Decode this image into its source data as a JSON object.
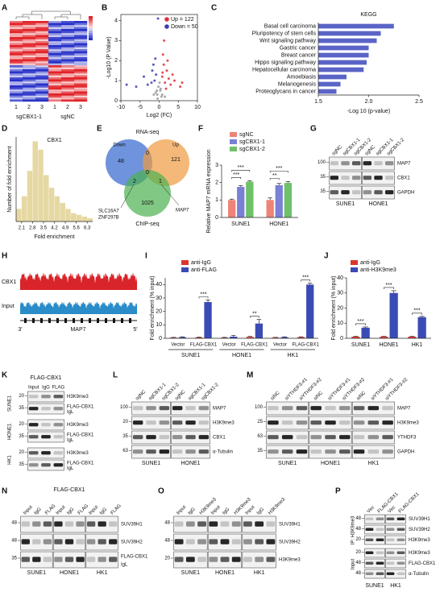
{
  "panel_labels": [
    "A",
    "B",
    "C",
    "D",
    "E",
    "F",
    "G",
    "H",
    "I",
    "J",
    "K",
    "L",
    "M",
    "N",
    "O",
    "P"
  ],
  "heatmap": {
    "lanes": [
      "1",
      "2",
      "3",
      "1",
      "2",
      "3"
    ],
    "groups": [
      "sgCBX1-1",
      "sgNC"
    ]
  },
  "venn": {
    "sets": [
      "RNA-seq",
      "ChIP-seq"
    ],
    "down": "Down",
    "up": "Up",
    "counts": [
      48,
      0,
      121,
      2,
      0,
      1,
      1025
    ],
    "genes_left": [
      "SLC16A7",
      "ZNF297B"
    ],
    "gene_right": "MAP7"
  },
  "track_H": {
    "tracks": [
      "CBX1",
      "Input"
    ],
    "ends": [
      "3'",
      "5'"
    ],
    "gene": "MAP7"
  },
  "chart_data": [
    {
      "type": "scatter",
      "xlabel": "Log2 (FC)",
      "ylabel": "-Log10 (P Value)",
      "xlim": [
        -10,
        10
      ],
      "xticks": [
        -10,
        -5,
        0,
        5,
        10
      ],
      "ylim": [
        0,
        4.3
      ],
      "yticks": [
        0,
        1,
        2,
        3,
        4
      ],
      "legend": "upper right",
      "series": [
        {
          "name": "Up = 122",
          "color": "#e0303a",
          "x": [
            0.8,
            1.2,
            1.5,
            2,
            2.5,
            3,
            1,
            4,
            5.5,
            1.8,
            2.2,
            0.9,
            3.5,
            6,
            1.3
          ],
          "values": [
            1.2,
            1.8,
            0.9,
            1.5,
            1.1,
            0.8,
            2.3,
            1.0,
            0.7,
            0.6,
            2.0,
            1.4,
            1.3,
            0.9,
            3.0
          ]
        },
        {
          "name": "Down = 50",
          "color": "#3a3fb0",
          "x": [
            -0.8,
            -1.2,
            -1.5,
            -2,
            -3,
            -1,
            -4,
            -6,
            -8.5,
            -1.8,
            -0.3
          ],
          "values": [
            1.3,
            1.0,
            1.8,
            0.9,
            0.8,
            2.1,
            1.2,
            0.7,
            0.8,
            1.5,
            4.1
          ]
        },
        {
          "color": "#9a9a9a",
          "x": [
            -0.5,
            0.3,
            -0.2,
            0.6,
            -0.9,
            0.1,
            0.4,
            -0.4,
            0.8,
            -0.6,
            1.5,
            -1.4
          ],
          "values": [
            0.3,
            0.5,
            0.7,
            0.2,
            0.4,
            0.9,
            0.6,
            0.1,
            0.3,
            0.5,
            0.2,
            0.3
          ]
        }
      ]
    },
    {
      "type": "bar",
      "orientation": "horizontal",
      "title": "KEGG",
      "xlabel": "-Log 10 (p-value)",
      "categories": [
        "Basal cell carcinoma",
        "Pluripotency of stem cells",
        "Wnt signaling pathway",
        "Gastric cancer",
        "Breast cancer",
        "Hippo signaling pathway",
        "Hepatocellular carcinoma",
        "Amoebiasis",
        "Melanogenesis",
        "Proteoglycans in cancer"
      ],
      "values": [
        2.25,
        2.12,
        2.08,
        2.0,
        2.0,
        1.98,
        1.95,
        1.78,
        1.72,
        1.68
      ],
      "color": "#5a64c6",
      "xlim": [
        1.5,
        2.5
      ],
      "xticks": [
        1.5,
        {
          "value": 2,
          "label": "2.0"
        },
        2.5
      ]
    },
    {
      "type": "histogram",
      "title": "CBX1",
      "xlabel": "Fold enrichment",
      "ylabel": "Number of fold enrichment",
      "bins": [
        1.75,
        2.1,
        2.45,
        2.8,
        3.15,
        3.5,
        3.85,
        4.2,
        4.55,
        4.9,
        5.25,
        5.6,
        5.95,
        6.3,
        6.65
      ],
      "values": [
        15,
        30,
        60,
        95,
        85,
        55,
        40,
        30,
        22,
        15,
        10,
        8,
        6,
        4
      ],
      "color": "#e6d8a2",
      "xlim": [
        1.75,
        6.65
      ],
      "ylim": [
        0,
        100
      ],
      "xticks": [
        2.1,
        2.8,
        3.5,
        4.2,
        4.9,
        5.6,
        6.3
      ]
    },
    {
      "type": "bar",
      "ylabel": "Relative MAP7 mRNA expression",
      "categories": [
        "SUNE1",
        "HONE1"
      ],
      "series": [
        {
          "name": "sgNC",
          "color": "#ee8377",
          "values": [
            1.0,
            1.0
          ],
          "errors": [
            0.05,
            0.12
          ]
        },
        {
          "name": "sgCBX1-1",
          "color": "#7a80d6",
          "values": [
            1.75,
            1.85
          ],
          "errors": [
            0.07,
            0.1
          ]
        },
        {
          "name": "sgCBX1-2",
          "color": "#6fc06a",
          "values": [
            2.05,
            1.98
          ],
          "errors": [
            0.06,
            0.08
          ]
        }
      ],
      "ylim": [
        0,
        3
      ],
      "yticks": [
        0,
        1,
        2,
        3
      ],
      "annotations": [
        "***",
        "***",
        "**",
        "***"
      ]
    },
    {
      "type": "bar",
      "ylabel": "Fold enrichment (% input)",
      "categories": [
        "Vector",
        "FLAG-CBX1",
        "Vector",
        "FLAG-CBX1",
        "Vector",
        "FLAG-CBX1"
      ],
      "groups": [
        "SUNE1",
        "HONE1",
        "HK1"
      ],
      "series": [
        {
          "name": "anti-IgG",
          "color": "#d9362e",
          "values": [
            0.5,
            0.6,
            0.5,
            1.0,
            0.5,
            0.8
          ],
          "errors": [
            0.2,
            0.3,
            0.2,
            0.4,
            0.2,
            0.3
          ]
        },
        {
          "name": "anti-FLAG",
          "color": "#3b4bb5",
          "values": [
            0.8,
            27,
            1.2,
            11,
            0.8,
            40
          ],
          "errors": [
            0.3,
            1.5,
            1.0,
            3.0,
            0.3,
            1.0
          ]
        }
      ],
      "ylim": [
        0,
        45
      ],
      "yticks": [
        0,
        10,
        20,
        30,
        40
      ],
      "annotations": [
        "***",
        "**",
        "***"
      ]
    },
    {
      "type": "bar",
      "ylabel": "Fold enrichment (% input)",
      "categories": [
        "SUNE1",
        "HONE1",
        "HK1"
      ],
      "series": [
        {
          "name": "anti-IgG",
          "color": "#d9362e",
          "values": [
            1,
            1,
            1
          ],
          "errors": [
            0.3,
            0.3,
            0.3
          ]
        },
        {
          "name": "anti-H3K9me3",
          "color": "#3b4bb5",
          "values": [
            7,
            30,
            14
          ],
          "errors": [
            0.5,
            1.5,
            0.5
          ]
        }
      ],
      "ylim": [
        0,
        40
      ],
      "yticks": [
        0,
        10,
        20,
        30,
        40
      ],
      "annotations": [
        "***",
        "***",
        "***"
      ]
    }
  ],
  "blot_G": {
    "lanes": [
      "sgNC",
      "sgCBX1-1",
      "sgCBX1-2",
      "sgNC",
      "sgCBX1-1",
      "sgCBX1-2"
    ],
    "groups": [
      "SUNE1",
      "HONE1"
    ],
    "blocks": [
      {
        "rows": [
          {
            "ladder": 100,
            "label": "MAP7"
          },
          {
            "ladder": 35,
            "label": "CBX1"
          },
          {
            "ladder": 35,
            "label": "GAPDH"
          }
        ]
      }
    ]
  },
  "blot_K": {
    "title": "FLAG-CBX1",
    "lanes": [
      "Input",
      "IgG",
      "FLAG"
    ],
    "blocks": [
      {
        "side": "SUNE1",
        "rows": [
          {
            "ladder": 20,
            "label": "H3K9me3"
          },
          {
            "ladder": 35,
            "label": "FLAG-CBX1",
            "sub": "IgL"
          }
        ]
      },
      {
        "side": "HONE1",
        "rows": [
          {
            "ladder": 20,
            "label": "H3K9me3"
          },
          {
            "ladder": 35,
            "label": "FLAG-CBX1",
            "sub": "IgL"
          }
        ]
      },
      {
        "side": "HK1",
        "rows": [
          {
            "ladder": 20,
            "label": "H3K9me3"
          },
          {
            "ladder": 35,
            "label": "FLAG-CBX1",
            "sub": "IgL"
          }
        ]
      }
    ]
  },
  "blot_L": {
    "lanes": [
      "sgNC",
      "sgCBX1-1",
      "sgCBX1-2",
      "sgNC",
      "sgCBX1-1",
      "sgCBX1-2"
    ],
    "groups": [
      "SUNE1",
      "HONE1"
    ],
    "blocks": [
      {
        "rows": [
          {
            "ladder": 100,
            "label": "MAP7"
          },
          {
            "ladder": 20,
            "label": "H3K9me3"
          },
          {
            "ladder": 35,
            "label": "CBX1"
          },
          {
            "ladder": 63,
            "label": "α-Tubulin"
          }
        ]
      }
    ]
  },
  "blot_M": {
    "lanes": [
      "siNC",
      "siYTHDF3-#1",
      "siYTHDF3-#2",
      "siNC",
      "siYTHDF3-#1",
      "siYTHDF3-#2",
      "siNC",
      "siYTHDF3-#1",
      "siYTHDF3-#2"
    ],
    "groups": [
      "SUNE1",
      "HONE1",
      "HK1"
    ],
    "blocks": [
      {
        "rows": [
          {
            "ladder": 100,
            "label": "MAP7"
          },
          {
            "ladder": 25,
            "label": "H3K9me3"
          },
          {
            "ladder": 63,
            "label": "YTHDF3"
          },
          {
            "ladder": 35,
            "label": "GAPDH"
          }
        ]
      }
    ]
  },
  "blot_N": {
    "title": "FLAG-CBX1",
    "lanes": [
      "Input",
      "IgG",
      "FLAG",
      "Input",
      "IgG",
      "FLAG",
      "Input",
      "IgG",
      "FLAG"
    ],
    "groups": [
      "SUNE1",
      "HONE1",
      "HK1"
    ],
    "blocks": [
      {
        "rows": [
          {
            "ladder": 48,
            "label": "SUV39H1"
          },
          {
            "ladder": 48,
            "label": "SUV39H2"
          },
          {
            "ladder": 35,
            "label": "FLAG-CBX1",
            "sub": "IgL"
          }
        ]
      }
    ]
  },
  "blot_O": {
    "lanes": [
      "Input",
      "IgG",
      "H3K9me3",
      "Input",
      "IgG",
      "H3K9me3",
      "Input",
      "IgG",
      "H3K9me3"
    ],
    "groups": [
      "SUNE1",
      "HONE1",
      "HK1"
    ],
    "blocks": [
      {
        "rows": [
          {
            "ladder": 48,
            "label": "SUV39H1"
          },
          {
            "ladder": 48,
            "label": "SUV39H2"
          },
          {
            "ladder": 20,
            "label": "H3K9me3"
          }
        ]
      }
    ]
  },
  "blot_P": {
    "lanes": [
      "Vec",
      "FLAG-CBX1",
      "Vec",
      "FLAG-CBX1"
    ],
    "groups": [
      "SUNE1",
      "HK1"
    ],
    "blocks": [
      {
        "side": "IP: H3K9me3",
        "rows": [
          {
            "ladder": 48,
            "label": "SUV39H1"
          },
          {
            "ladder": 48,
            "label": "SUV39H2"
          },
          {
            "ladder": 20,
            "label": "H3K9me3"
          }
        ]
      },
      {
        "side": "Input",
        "rows": [
          {
            "ladder": 20,
            "label": "H3K9me3"
          },
          {
            "ladder": 48,
            "label": "FLAG-CBX1"
          },
          {
            "ladder": 48,
            "label": "α-Tubulin"
          }
        ]
      }
    ]
  }
}
